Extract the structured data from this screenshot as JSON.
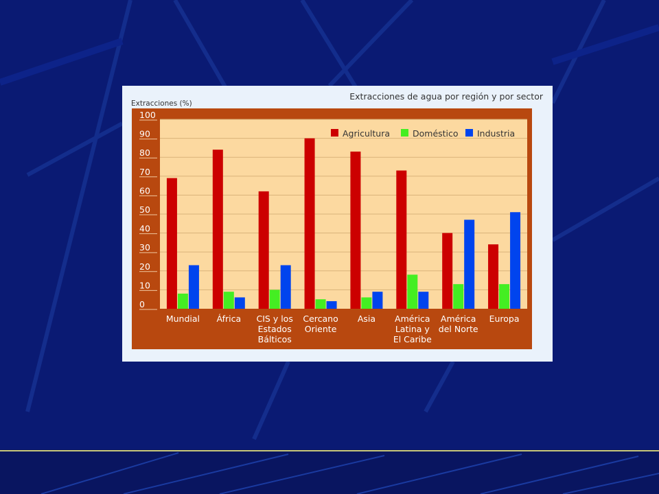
{
  "chart_data": {
    "type": "bar",
    "title": "Extracciones de agua por región y por sector",
    "ylabel": "Extracciones (%)",
    "xlabel": "",
    "ylim": [
      0,
      100
    ],
    "yticks": [
      0,
      10,
      20,
      30,
      40,
      50,
      60,
      70,
      80,
      90,
      100
    ],
    "grid": true,
    "legend_position": "top-right",
    "categories": [
      [
        "Mundial"
      ],
      [
        "África"
      ],
      [
        "CIS y los",
        "Estados",
        "Bálticos"
      ],
      [
        "Cercano",
        "Oriente"
      ],
      [
        "Asia"
      ],
      [
        "América",
        "Latina y",
        "El Caribe"
      ],
      [
        "América",
        "del Norte"
      ],
      [
        "Europa"
      ]
    ],
    "series": [
      {
        "name": "Agricultura",
        "color": "#cc0000",
        "values": [
          69,
          84,
          62,
          90,
          83,
          73,
          40,
          34
        ]
      },
      {
        "name": "Doméstico",
        "color": "#44ee22",
        "values": [
          8,
          9,
          10,
          5,
          6,
          18,
          13,
          13
        ]
      },
      {
        "name": "Industria",
        "color": "#0044ee",
        "values": [
          23,
          6,
          23,
          4,
          9,
          9,
          47,
          51
        ]
      }
    ]
  }
}
